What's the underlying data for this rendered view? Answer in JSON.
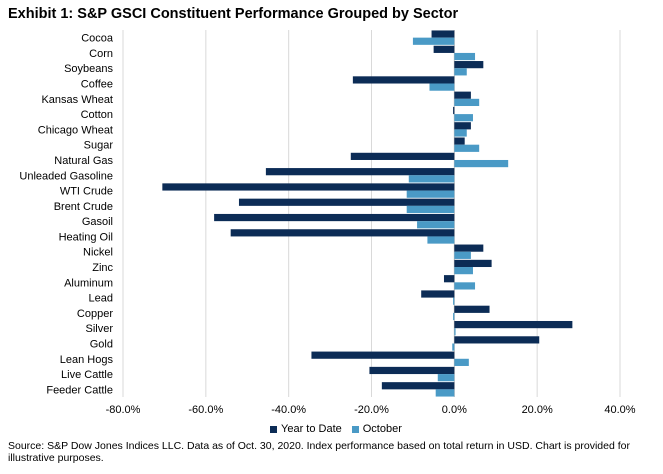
{
  "title": "Exhibit 1: S&P GSCI Constituent Performance Grouped by Sector",
  "source": "Source: S&P Dow Jones Indices LLC. Data as of Oct. 30, 2020. Index performance based on total return in USD. Chart is provided for illustrative purposes.",
  "colors": {
    "ytd": "#0c2c56",
    "october": "#4a9ac6",
    "grid": "#d9d9d9"
  },
  "chart_data": {
    "type": "bar",
    "orientation": "horizontal",
    "categories": [
      "Cocoa",
      "Corn",
      "Soybeans",
      "Coffee",
      "Kansas Wheat",
      "Cotton",
      "Chicago Wheat",
      "Sugar",
      "Natural Gas",
      "Unleaded Gasoline",
      "WTI Crude",
      "Brent Crude",
      "Gasoil",
      "Heating Oil",
      "Nickel",
      "Zinc",
      "Aluminum",
      "Lead",
      "Copper",
      "Silver",
      "Gold",
      "Lean Hogs",
      "Live Cattle",
      "Feeder Cattle"
    ],
    "series": [
      {
        "name": "Year to Date",
        "values": [
          -5.5,
          -5.0,
          7.0,
          -24.5,
          4.0,
          -0.3,
          4.0,
          2.5,
          -25.0,
          -45.5,
          -70.5,
          -52.0,
          -58.0,
          -54.0,
          7.0,
          9.0,
          -2.5,
          -8.0,
          8.5,
          28.5,
          20.5,
          -34.5,
          -20.5,
          -17.5
        ]
      },
      {
        "name": "October",
        "values": [
          -10.0,
          5.0,
          3.0,
          -6.0,
          6.0,
          4.5,
          3.0,
          6.0,
          13.0,
          -11.0,
          -11.5,
          -11.5,
          -9.0,
          -6.5,
          4.0,
          4.5,
          5.0,
          -0.3,
          -0.3,
          0.3,
          -0.5,
          3.5,
          -4.0,
          -4.5
        ]
      }
    ],
    "xlim": [
      -80,
      40
    ],
    "xticks": [
      "-80.0%",
      "-60.0%",
      "-40.0%",
      "-20.0%",
      "0.0%",
      "20.0%",
      "40.0%"
    ],
    "xtick_values": [
      -80,
      -60,
      -40,
      -20,
      0,
      20,
      40
    ],
    "grid": true,
    "legend_position": "bottom"
  }
}
